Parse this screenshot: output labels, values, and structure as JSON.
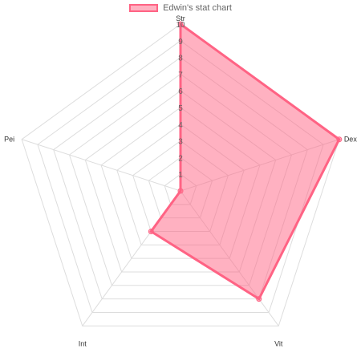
{
  "chart_data": {
    "type": "radar",
    "title": "",
    "categories": [
      "Str",
      "Dex",
      "Vit",
      "Int",
      "Pei"
    ],
    "series": [
      {
        "name": "Edwin's stat chart",
        "values": [
          10,
          10,
          8,
          3,
          0
        ],
        "border_color": "#ff6384",
        "fill_color": "rgba(255, 99, 132, 0.5)"
      }
    ],
    "range": [
      0,
      10
    ],
    "ticks": [
      "1",
      "2",
      "3",
      "4",
      "5",
      "6",
      "7",
      "8",
      "9",
      "10"
    ],
    "grid": true,
    "legend_position": "top"
  }
}
